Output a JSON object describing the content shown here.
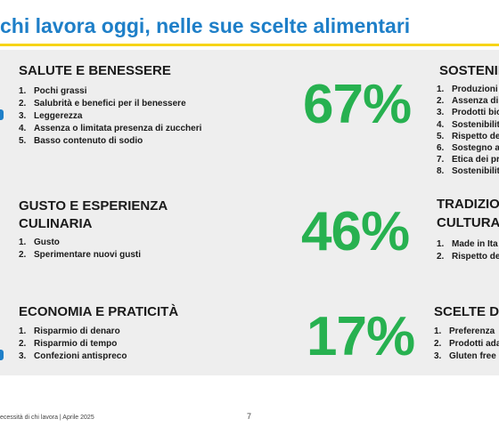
{
  "title": "chi lavora oggi, nelle sue scelte alimentari",
  "sections_left": [
    {
      "heading": "SALUTE E BENESSERE",
      "items": [
        "Pochi grassi",
        "Salubrità e benefici per il benessere",
        "Leggerezza",
        "Assenza o limitata presenza di zuccheri",
        "Basso contenuto di sodio"
      ],
      "percent": "67%"
    },
    {
      "heading_lines": [
        "GUSTO E ESPERIENZA",
        "CULINARIA"
      ],
      "items": [
        "Gusto",
        "Sperimentare nuovi gusti"
      ],
      "percent": "46%"
    },
    {
      "heading": "ECONOMIA E PRATICITÀ",
      "items": [
        "Risparmio di denaro",
        "Risparmio di tempo",
        "Confezioni antispreco"
      ],
      "percent": "17%"
    }
  ],
  "sections_right": [
    {
      "heading": "SOSTENIB",
      "items": [
        "Produzioni",
        "Assenza di",
        "Prodotti bio",
        "Sostenibilit",
        "Rispetto de",
        "Sostegno a",
        "Etica dei pr",
        "Sostenibilit"
      ]
    },
    {
      "heading_lines": [
        "TRADIZIO",
        "CULTURA"
      ],
      "items": [
        "Made in Ita",
        "Rispetto de"
      ]
    },
    {
      "heading": "SCELTE D",
      "items": [
        "Preferenza",
        "Prodotti ada",
        "Gluten free"
      ]
    }
  ],
  "footer": {
    "text": "ecessità di chi lavora | Aprile 2025",
    "page": "7"
  },
  "colors": {
    "title": "#1e7fc8",
    "rule": "#f7d417",
    "percent": "#27b150",
    "panel": "#eeeeee"
  }
}
